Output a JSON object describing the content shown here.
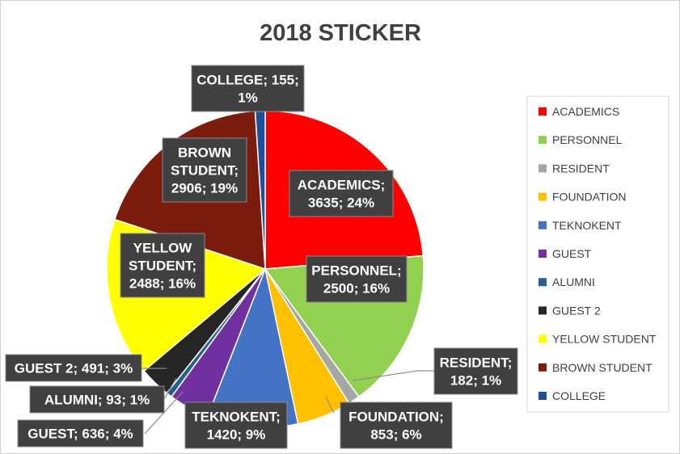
{
  "chart_data": {
    "type": "pie",
    "title": "2018 STICKER",
    "legend_position": "right",
    "slices": [
      {
        "name": "ACADEMICS",
        "value": 3635,
        "percent": "24%",
        "color": "#ff0000",
        "label_lines": [
          "ACADEMICS;",
          "3635; 24%"
        ]
      },
      {
        "name": "PERSONNEL",
        "value": 2500,
        "percent": "16%",
        "color": "#92d050",
        "label_lines": [
          "PERSONNEL;",
          "2500; 16%"
        ]
      },
      {
        "name": "RESIDENT",
        "value": 182,
        "percent": "1%",
        "color": "#a6a6a6",
        "label_lines": [
          "RESIDENT;",
          "182; 1%"
        ]
      },
      {
        "name": "FOUNDATION",
        "value": 853,
        "percent": "6%",
        "color": "#ffc000",
        "label_lines": [
          "FOUNDATION;",
          "853; 6%"
        ]
      },
      {
        "name": "TEKNOKENT",
        "value": 1420,
        "percent": "9%",
        "color": "#4472c4",
        "label_lines": [
          "TEKNOKENT;",
          "1420; 9%"
        ]
      },
      {
        "name": "GUEST",
        "value": 636,
        "percent": "4%",
        "color": "#7030a0",
        "label_lines": [
          "GUEST; 636; 4%"
        ]
      },
      {
        "name": "ALUMNI",
        "value": 93,
        "percent": "1%",
        "color": "#255e91",
        "label_lines": [
          "ALUMNI; 93; 1%"
        ]
      },
      {
        "name": "GUEST 2",
        "value": 491,
        "percent": "3%",
        "color": "#262626",
        "label_lines": [
          "GUEST 2; 491; 3%"
        ]
      },
      {
        "name": "YELLOW STUDENT",
        "value": 2488,
        "percent": "16%",
        "color": "#ffff00",
        "label_lines": [
          "YELLOW",
          "STUDENT;",
          "2488; 16%"
        ]
      },
      {
        "name": "BROWN STUDENT",
        "value": 2906,
        "percent": "19%",
        "color": "#7b1c0e",
        "label_lines": [
          "BROWN",
          "STUDENT;",
          "2906; 19%"
        ]
      },
      {
        "name": "COLLEGE",
        "value": 155,
        "percent": "1%",
        "color": "#1f4e9a",
        "label_lines": [
          "COLLEGE; 155;",
          "1%"
        ]
      }
    ]
  }
}
